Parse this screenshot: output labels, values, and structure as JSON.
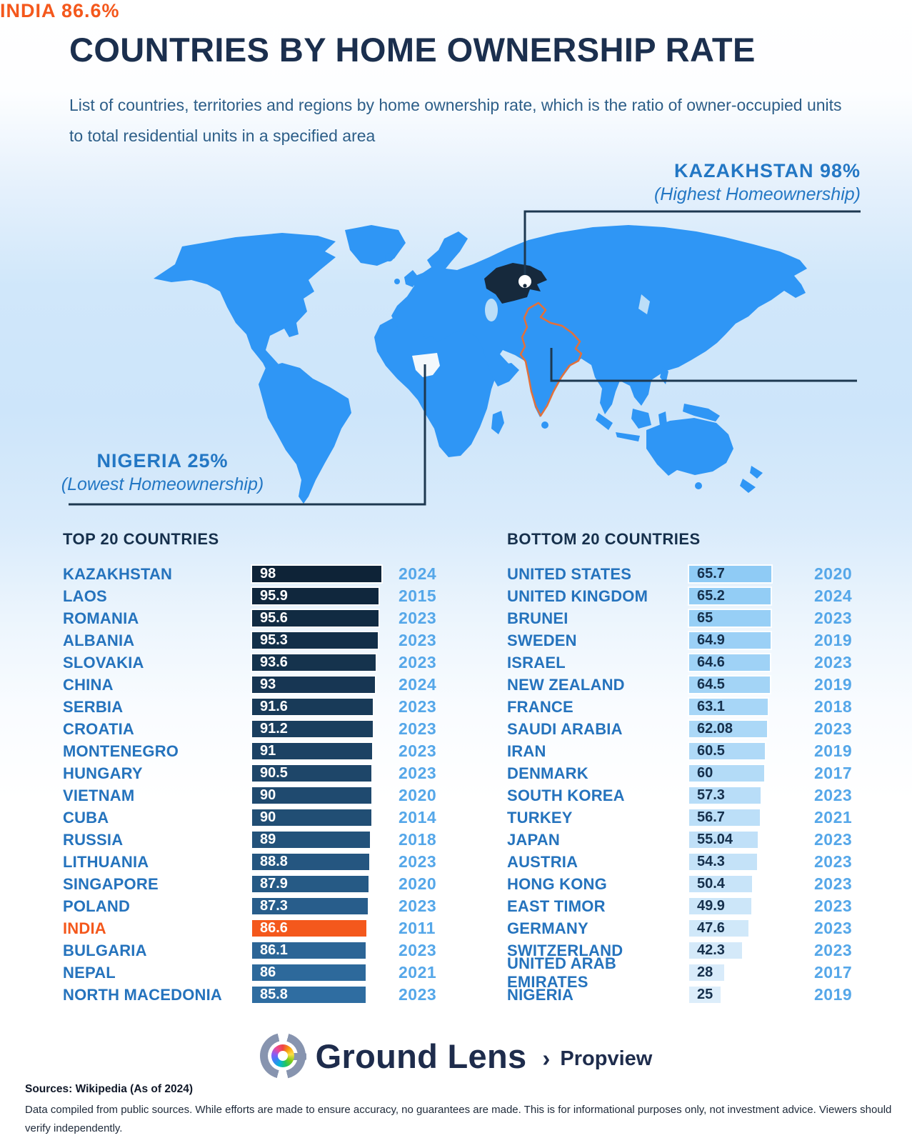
{
  "page": {
    "title": "COUNTRIES BY HOME OWNERSHIP RATE",
    "subtitle": "List of countries, territories and regions by home ownership rate, which is the ratio of owner-occupied units to total residential units in a specified area"
  },
  "map": {
    "kazakhstan": {
      "title": "KAZAKHSTAN  98%",
      "subtitle": "(Highest Homeownership)"
    },
    "india": {
      "title": "INDIA 86.6%"
    },
    "nigeria": {
      "title": "NIGERIA  25%",
      "subtitle": "(Lowest Homeownership)"
    }
  },
  "lists": {
    "top": {
      "heading": "TOP 20 COUNTRIES",
      "rows": [
        {
          "country": "KAZAKHSTAN",
          "value": "98",
          "year": "2024"
        },
        {
          "country": "LAOS",
          "value": "95.9",
          "year": "2015"
        },
        {
          "country": "ROMANIA",
          "value": "95.6",
          "year": "2023"
        },
        {
          "country": "ALBANIA",
          "value": "95.3",
          "year": "2023"
        },
        {
          "country": "SLOVAKIA",
          "value": "93.6",
          "year": "2023"
        },
        {
          "country": "CHINA",
          "value": "93",
          "year": "2024"
        },
        {
          "country": "SERBIA",
          "value": "91.6",
          "year": "2023"
        },
        {
          "country": "CROATIA",
          "value": "91.2",
          "year": "2023"
        },
        {
          "country": "MONTENEGRO",
          "value": "91",
          "year": "2023"
        },
        {
          "country": "HUNGARY",
          "value": "90.5",
          "year": "2023"
        },
        {
          "country": "VIETNAM",
          "value": "90",
          "year": "2020"
        },
        {
          "country": "CUBA",
          "value": "90",
          "year": "2014"
        },
        {
          "country": "RUSSIA",
          "value": "89",
          "year": "2018"
        },
        {
          "country": "LITHUANIA",
          "value": "88.8",
          "year": "2023"
        },
        {
          "country": "SINGAPORE",
          "value": "87.9",
          "year": "2020"
        },
        {
          "country": "POLAND",
          "value": "87.3",
          "year": "2023"
        },
        {
          "country": "INDIA",
          "value": "86.6",
          "year": "2011",
          "highlight": true
        },
        {
          "country": "BULGARIA",
          "value": "86.1",
          "year": "2023"
        },
        {
          "country": "NEPAL",
          "value": "86",
          "year": "2021"
        },
        {
          "country": "NORTH MACEDONIA",
          "value": "85.8",
          "year": "2023"
        }
      ]
    },
    "bottom": {
      "heading": "BOTTOM 20 COUNTRIES",
      "rows": [
        {
          "country": "UNITED STATES",
          "value": "65.7",
          "year": "2020"
        },
        {
          "country": "UNITED KINGDOM",
          "value": "65.2",
          "year": "2024"
        },
        {
          "country": "BRUNEI",
          "value": "65",
          "year": "2023"
        },
        {
          "country": "SWEDEN",
          "value": "64.9",
          "year": "2019"
        },
        {
          "country": "ISRAEL",
          "value": "64.6",
          "year": "2023"
        },
        {
          "country": "NEW ZEALAND",
          "value": "64.5",
          "year": "2019"
        },
        {
          "country": "FRANCE",
          "value": "63.1",
          "year": "2018"
        },
        {
          "country": "SAUDI ARABIA",
          "value": "62.08",
          "year": "2023"
        },
        {
          "country": "IRAN",
          "value": "60.5",
          "year": "2019"
        },
        {
          "country": "DENMARK",
          "value": "60",
          "year": "2017"
        },
        {
          "country": "SOUTH KOREA",
          "value": "57.3",
          "year": "2023"
        },
        {
          "country": "TURKEY",
          "value": "56.7",
          "year": "2021"
        },
        {
          "country": "JAPAN",
          "value": "55.04",
          "year": "2023"
        },
        {
          "country": "AUSTRIA",
          "value": "54.3",
          "year": "2023"
        },
        {
          "country": "HONG KONG",
          "value": "50.4",
          "year": "2023"
        },
        {
          "country": "EAST TIMOR",
          "value": "49.9",
          "year": "2023"
        },
        {
          "country": "GERMANY",
          "value": "47.6",
          "year": "2023"
        },
        {
          "country": "SWITZERLAND",
          "value": "42.3",
          "year": "2023"
        },
        {
          "country": "UNITED ARAB EMIRATES",
          "value": "28",
          "year": "2017"
        },
        {
          "country": "NIGERIA",
          "value": "25",
          "year": "2019"
        }
      ]
    }
  },
  "footer": {
    "brand": "Ground Lens",
    "chevron": "›",
    "suffix": "Propview",
    "sources": "Sources: Wikipedia (As of 2024)",
    "disclaimer": "Data compiled from public sources. While efforts are made to ensure accuracy, no guarantees are made. This is for informational purposes only, not investment advice. Viewers should verify independently."
  },
  "colors": {
    "orange": "#F4581C",
    "label_blue": "#2573BD",
    "year_blue": "#55A7E9",
    "heading_navy": "#16304C",
    "top_bar_start": "#0E2337",
    "top_bar_end": "#2F6DA1",
    "top_bar_text": "#FFFFFF",
    "bottom_bar_start": "#8FCBF5",
    "bottom_bar_end": "#DCEDFA",
    "bottom_bar_text": "#16304C",
    "land_blue": "#2F96F5",
    "land_light": "#BCDEF8",
    "line_navy": "#1D3850",
    "highlight_navy": "#16293C",
    "nigeria_white": "#F3F8FC"
  },
  "chart_data": [
    {
      "type": "bar",
      "orientation": "horizontal",
      "title": "TOP 20 COUNTRIES",
      "unit": "% home ownership rate",
      "categories": [
        "KAZAKHSTAN",
        "LAOS",
        "ROMANIA",
        "ALBANIA",
        "SLOVAKIA",
        "CHINA",
        "SERBIA",
        "CROATIA",
        "MONTENEGRO",
        "HUNGARY",
        "VIETNAM",
        "CUBA",
        "RUSSIA",
        "LITHUANIA",
        "SINGAPORE",
        "POLAND",
        "INDIA",
        "BULGARIA",
        "NEPAL",
        "NORTH MACEDONIA"
      ],
      "values": [
        98,
        95.9,
        95.6,
        95.3,
        93.6,
        93,
        91.6,
        91.2,
        91,
        90.5,
        90,
        90,
        89,
        88.8,
        87.9,
        87.3,
        86.6,
        86.1,
        86,
        85.8
      ],
      "years": [
        2024,
        2015,
        2023,
        2023,
        2023,
        2024,
        2023,
        2023,
        2023,
        2023,
        2020,
        2014,
        2018,
        2023,
        2020,
        2023,
        2011,
        2023,
        2021,
        2023
      ],
      "highlight": {
        "category": "INDIA",
        "value": 86.6,
        "color": "#F4581C"
      },
      "xlim": [
        0,
        100
      ],
      "grid": false,
      "legend": "none"
    },
    {
      "type": "bar",
      "orientation": "horizontal",
      "title": "BOTTOM 20 COUNTRIES",
      "unit": "% home ownership rate",
      "categories": [
        "UNITED STATES",
        "UNITED KINGDOM",
        "BRUNEI",
        "SWEDEN",
        "ISRAEL",
        "NEW ZEALAND",
        "FRANCE",
        "SAUDI ARABIA",
        "IRAN",
        "DENMARK",
        "SOUTH KOREA",
        "TURKEY",
        "JAPAN",
        "AUSTRIA",
        "HONG KONG",
        "EAST TIMOR",
        "GERMANY",
        "SWITZERLAND",
        "UNITED ARAB EMIRATES",
        "NIGERIA"
      ],
      "values": [
        65.7,
        65.2,
        65,
        64.9,
        64.6,
        64.5,
        63.1,
        62.08,
        60.5,
        60,
        57.3,
        56.7,
        55.04,
        54.3,
        50.4,
        49.9,
        47.6,
        42.3,
        28,
        25
      ],
      "years": [
        2020,
        2024,
        2023,
        2019,
        2023,
        2019,
        2018,
        2023,
        2019,
        2017,
        2023,
        2021,
        2023,
        2023,
        2023,
        2023,
        2023,
        2023,
        2017,
        2019
      ],
      "xlim": [
        0,
        100
      ],
      "grid": false,
      "legend": "none"
    },
    {
      "type": "map-annotations",
      "title": "World map highlights",
      "points": [
        {
          "label": "KAZAKHSTAN",
          "value": 98,
          "note": "Highest Homeownership"
        },
        {
          "label": "INDIA",
          "value": 86.6,
          "note": ""
        },
        {
          "label": "NIGERIA",
          "value": 25,
          "note": "Lowest Homeownership"
        }
      ]
    }
  ]
}
